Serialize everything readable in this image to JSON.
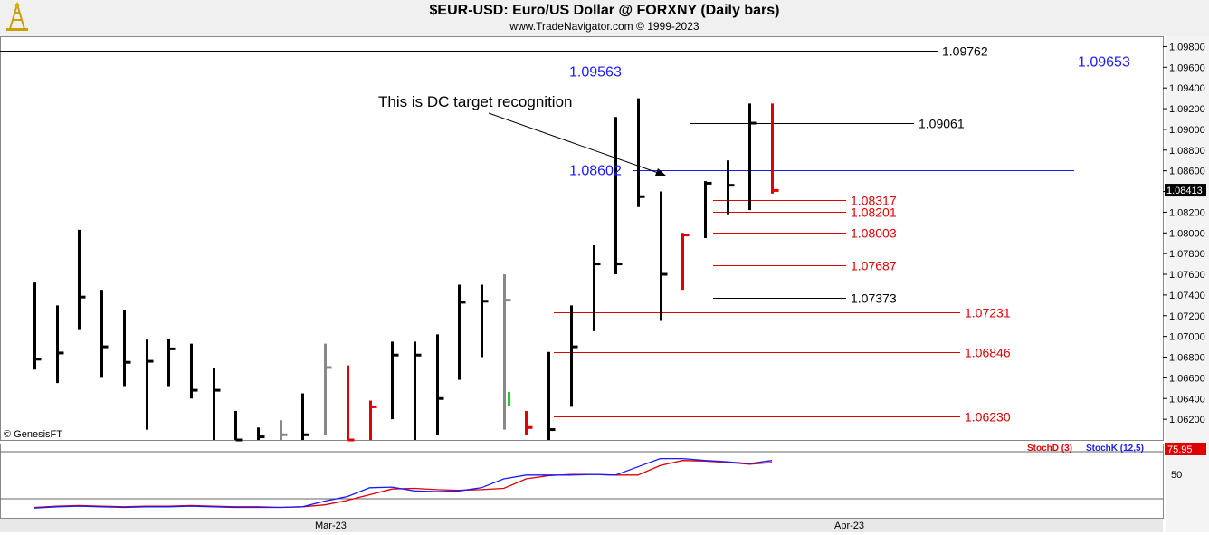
{
  "header": {
    "title": "$EUR-USD:  Euro/US Dollar @ FORXNY  (Daily bars)",
    "subtitle": "www.TradeNavigator.com © 1999-2023",
    "logo_icon": "oil-derrick-icon"
  },
  "chart_data": [
    {
      "type": "ohlc",
      "name": "price-panel",
      "y_axis": {
        "range": [
          1.06,
          1.099
        ],
        "ticks": [
          "1.09800",
          "1.09600",
          "1.09400",
          "1.09200",
          "1.09000",
          "1.08800",
          "1.08600",
          "1.08400",
          "1.08200",
          "1.08000",
          "1.07800",
          "1.07600",
          "1.07400",
          "1.07200",
          "1.07000",
          "1.06800",
          "1.06600",
          "1.06400",
          "1.06200"
        ],
        "current_price_label": "1.08413"
      },
      "x_axis": {
        "labels": [
          "Mar-23",
          "Apr-23"
        ]
      },
      "bars": [
        {
          "h": 1.0752,
          "l": 1.0668,
          "c": 1.0678,
          "color": "#000000"
        },
        {
          "h": 1.073,
          "l": 1.0655,
          "c": 1.0684,
          "color": "#000000"
        },
        {
          "h": 1.0803,
          "l": 1.0707,
          "c": 1.0738,
          "color": "#000000"
        },
        {
          "h": 1.0745,
          "l": 1.066,
          "c": 1.069,
          "color": "#000000"
        },
        {
          "h": 1.0725,
          "l": 1.0652,
          "c": 1.0675,
          "color": "#000000"
        },
        {
          "h": 1.0697,
          "l": 1.061,
          "c": 1.0676,
          "color": "#000000"
        },
        {
          "h": 1.0698,
          "l": 1.0652,
          "c": 1.0688,
          "color": "#000000"
        },
        {
          "h": 1.0693,
          "l": 1.064,
          "c": 1.0648,
          "color": "#000000"
        },
        {
          "h": 1.067,
          "l": 1.0593,
          "c": 1.0648,
          "color": "#000000"
        },
        {
          "h": 1.0628,
          "l": 1.0588,
          "c": 1.06,
          "color": "#000000"
        },
        {
          "h": 1.0612,
          "l": 1.0595,
          "c": 1.0603,
          "color": "#000000"
        },
        {
          "h": 1.0619,
          "l": 1.0595,
          "c": 1.0605,
          "color": "#888888"
        },
        {
          "h": 1.0645,
          "l": 1.0598,
          "c": 1.0605,
          "color": "#000000"
        },
        {
          "h": 1.0693,
          "l": 1.0605,
          "c": 1.067,
          "color": "#888888"
        },
        {
          "h": 1.0672,
          "l": 1.0585,
          "c": 1.06,
          "color": "#e00000"
        },
        {
          "h": 1.0638,
          "l": 1.06,
          "c": 1.0632,
          "color": "#e00000"
        },
        {
          "h": 1.0695,
          "l": 1.062,
          "c": 1.0682,
          "color": "#000000"
        },
        {
          "h": 1.0695,
          "l": 1.06,
          "c": 1.0682,
          "color": "#000000"
        },
        {
          "h": 1.0702,
          "l": 1.0605,
          "c": 1.064,
          "color": "#000000"
        },
        {
          "h": 1.075,
          "l": 1.0658,
          "c": 1.0733,
          "color": "#000000"
        },
        {
          "h": 1.075,
          "l": 1.068,
          "c": 1.0734,
          "color": "#000000"
        },
        {
          "h": 1.076,
          "l": 1.061,
          "c": 1.0735,
          "color": "#888888"
        },
        {
          "h": 1.0628,
          "l": 1.0605,
          "c": 1.0612,
          "color": "#e00000"
        },
        {
          "h": 1.0685,
          "l": 1.06,
          "c": 1.061,
          "color": "#000000"
        },
        {
          "h": 1.073,
          "l": 1.0632,
          "c": 1.069,
          "color": "#000000"
        },
        {
          "h": 1.0788,
          "l": 1.0705,
          "c": 1.077,
          "color": "#000000"
        },
        {
          "h": 1.0912,
          "l": 1.076,
          "c": 1.077,
          "color": "#000000"
        },
        {
          "h": 1.093,
          "l": 1.0825,
          "c": 1.0835,
          "color": "#000000"
        },
        {
          "h": 1.084,
          "l": 1.0715,
          "c": 1.076,
          "color": "#000000"
        },
        {
          "h": 1.08,
          "l": 1.0745,
          "c": 1.0798,
          "color": "#e00000"
        },
        {
          "h": 1.085,
          "l": 1.0795,
          "c": 1.0848,
          "color": "#000000"
        },
        {
          "h": 1.087,
          "l": 1.0818,
          "c": 1.0846,
          "color": "#000000"
        },
        {
          "h": 1.0925,
          "l": 1.0822,
          "c": 1.0906,
          "color": "#000000"
        },
        {
          "h": 1.0925,
          "l": 1.0838,
          "c": 1.0841,
          "color": "#e00000"
        }
      ],
      "levels": [
        {
          "value": 1.09762,
          "label": "1.09762",
          "color": "#000000",
          "side": "right"
        },
        {
          "value": 1.09653,
          "label": "1.09653",
          "color": "#1a1aff",
          "side": "right"
        },
        {
          "value": 1.09563,
          "label": "1.09563",
          "color": "#1a1aff",
          "side": "left"
        },
        {
          "value": 1.09061,
          "label": "1.09061",
          "color": "#000000",
          "side": "right"
        },
        {
          "value": 1.08602,
          "label": "1.08602",
          "color": "#1a1aff",
          "side": "left"
        },
        {
          "value": 1.08317,
          "label": "1.08317",
          "color": "#e00000",
          "side": "right"
        },
        {
          "value": 1.08201,
          "label": "1.08201",
          "color": "#e00000",
          "side": "right"
        },
        {
          "value": 1.08003,
          "label": "1.08003",
          "color": "#e00000",
          "side": "right"
        },
        {
          "value": 1.07687,
          "label": "1.07687",
          "color": "#e00000",
          "side": "right"
        },
        {
          "value": 1.07373,
          "label": "1.07373",
          "color": "#000000",
          "side": "right"
        },
        {
          "value": 1.07231,
          "label": "1.07231",
          "color": "#e00000",
          "side": "right"
        },
        {
          "value": 1.06846,
          "label": "1.06846",
          "color": "#e00000",
          "side": "right"
        },
        {
          "value": 1.0623,
          "label": "1.06230",
          "color": "#e00000",
          "side": "right"
        }
      ],
      "annotation": "This is DC target recognition",
      "copyright": "© GenesisFT"
    },
    {
      "type": "line",
      "name": "stochastic-panel",
      "legend": [
        "StochD (3)",
        "StochK (12,5)"
      ],
      "y_axis": {
        "ticks": [
          "50"
        ],
        "current_value_label": "75.95"
      },
      "series": [
        {
          "name": "StochD (3)",
          "color": "#e00000",
          "values": [
            5,
            7,
            8,
            7,
            6,
            7,
            7,
            8,
            7,
            6,
            6,
            5,
            6,
            9,
            16,
            25,
            34,
            35,
            33,
            32,
            33,
            35,
            50,
            55,
            57,
            57,
            56,
            56,
            71,
            79,
            78,
            76,
            73,
            76
          ]
        },
        {
          "name": "StochK (12,5)",
          "color": "#1a1aff",
          "values": [
            4,
            6,
            7,
            6,
            5,
            6,
            6,
            7,
            6,
            5,
            5,
            5,
            6,
            15,
            22,
            36,
            37,
            31,
            30,
            31,
            36,
            50,
            56,
            56,
            56,
            57,
            56,
            69,
            82,
            82,
            79,
            77,
            74,
            79
          ]
        }
      ]
    }
  ]
}
